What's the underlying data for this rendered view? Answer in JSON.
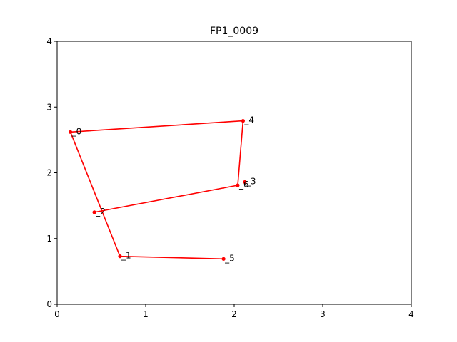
{
  "chart_data": {
    "type": "line",
    "title": "FP1_0009",
    "xlabel": "",
    "ylabel": "",
    "xlim": [
      0,
      4
    ],
    "ylim": [
      0,
      4
    ],
    "grid": false,
    "x_ticks": [
      "0",
      "1",
      "2",
      "3",
      "4"
    ],
    "y_ticks": [
      "0",
      "1",
      "2",
      "3",
      "4"
    ],
    "series": [
      {
        "color": "#ff0000",
        "marker": "dot",
        "points": [
          {
            "label": "_0",
            "x": 0.15,
            "y": 2.62
          },
          {
            "label": "_1",
            "x": 0.71,
            "y": 0.73
          },
          {
            "label": "_2",
            "x": 0.42,
            "y": 1.4
          },
          {
            "label": "_3",
            "x": 2.12,
            "y": 1.86
          },
          {
            "label": "_4",
            "x": 2.1,
            "y": 2.79
          },
          {
            "label": "_5",
            "x": 1.88,
            "y": 0.69
          },
          {
            "label": "_6",
            "x": 2.04,
            "y": 1.81
          }
        ],
        "path_order": [
          "_5",
          "_1",
          "_0",
          "_4",
          "_6",
          "_2"
        ]
      }
    ]
  }
}
